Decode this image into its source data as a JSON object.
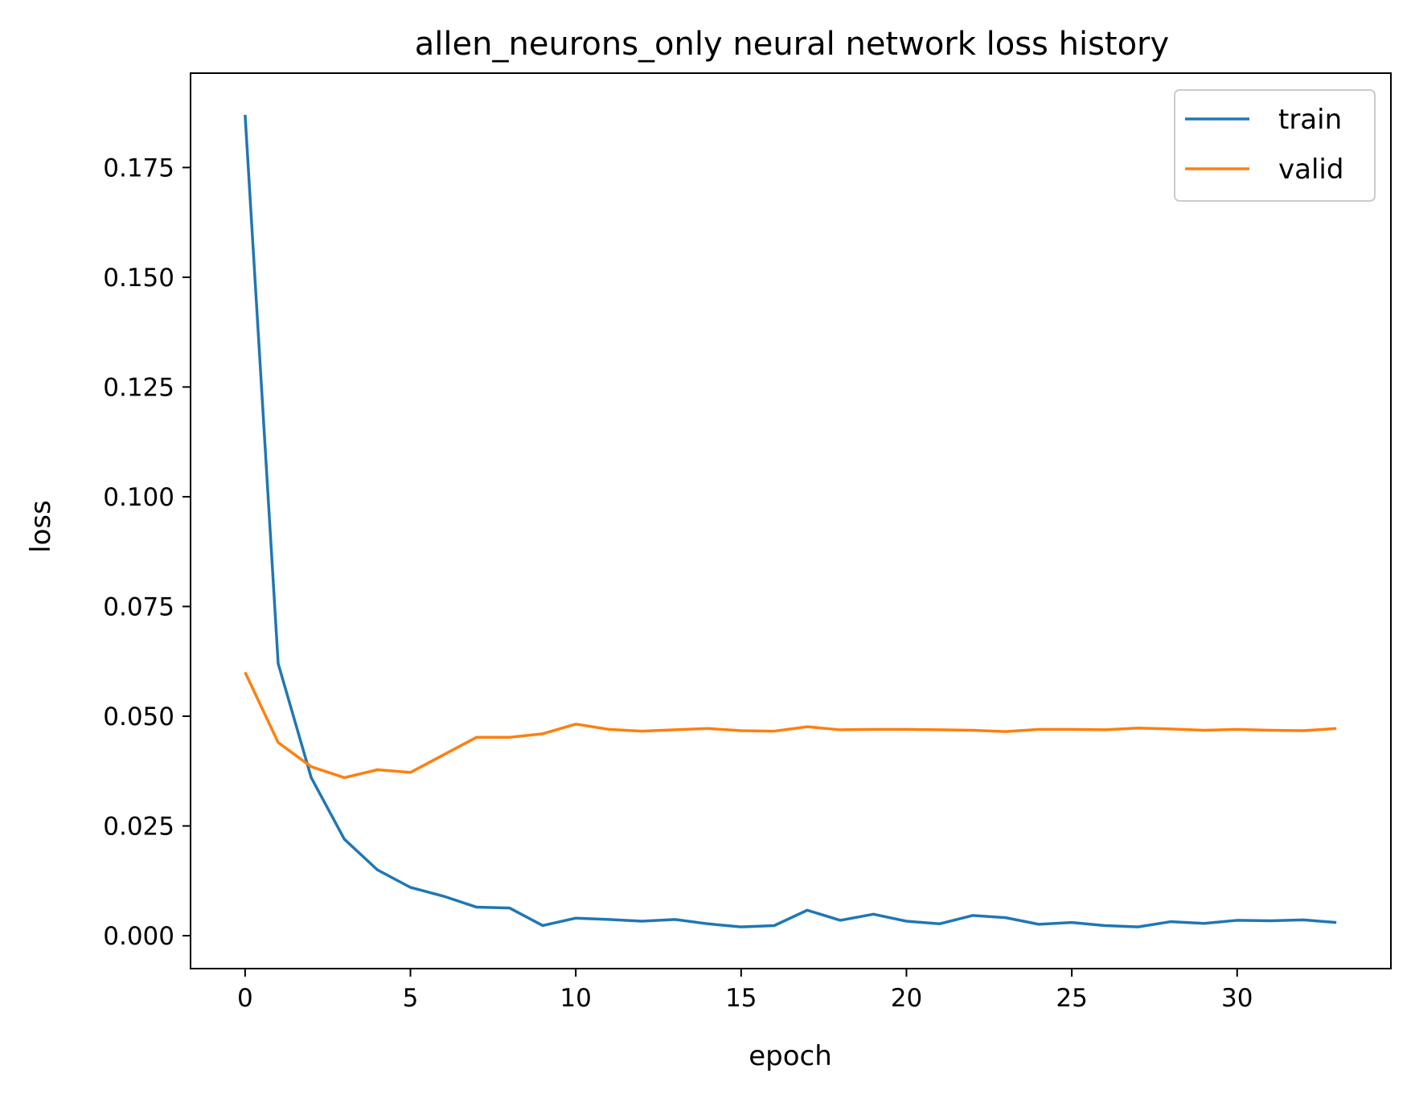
{
  "chart_data": {
    "type": "line",
    "title": "allen_neurons_only neural network loss history",
    "xlabel": "epoch",
    "ylabel": "loss",
    "xlim": [
      -1.65,
      34.65
    ],
    "ylim": [
      -0.0075,
      0.1965
    ],
    "xticks": [
      0,
      5,
      10,
      15,
      20,
      25,
      30
    ],
    "xtick_labels": [
      "0",
      "5",
      "10",
      "15",
      "20",
      "25",
      "30"
    ],
    "yticks": [
      0.0,
      0.025,
      0.05,
      0.075,
      0.1,
      0.125,
      0.15,
      0.175
    ],
    "ytick_labels": [
      "0.000",
      "0.025",
      "0.050",
      "0.075",
      "0.100",
      "0.125",
      "0.150",
      "0.175"
    ],
    "grid": false,
    "legend_position": "top-right",
    "x": [
      0,
      1,
      2,
      3,
      4,
      5,
      6,
      7,
      8,
      9,
      10,
      11,
      12,
      13,
      14,
      15,
      16,
      17,
      18,
      19,
      20,
      21,
      22,
      23,
      24,
      25,
      26,
      27,
      28,
      29,
      30,
      31,
      32,
      33
    ],
    "series": [
      {
        "name": "train",
        "color": "#1f77b4",
        "values": [
          0.187,
          0.062,
          0.036,
          0.022,
          0.015,
          0.011,
          0.009,
          0.0065,
          0.0063,
          0.0023,
          0.004,
          0.0037,
          0.0033,
          0.0037,
          0.0027,
          0.002,
          0.0023,
          0.0058,
          0.0035,
          0.0049,
          0.0033,
          0.0027,
          0.0046,
          0.0041,
          0.0026,
          0.003,
          0.0023,
          0.002,
          0.0032,
          0.0028,
          0.0035,
          0.0034,
          0.0036,
          0.003
        ]
      },
      {
        "name": "valid",
        "color": "#ff7f0e",
        "values": [
          0.06,
          0.044,
          0.0385,
          0.036,
          0.0378,
          0.0372,
          0.0412,
          0.0452,
          0.0452,
          0.046,
          0.0482,
          0.047,
          0.0466,
          0.0469,
          0.0472,
          0.0467,
          0.0466,
          0.0476,
          0.0469,
          0.047,
          0.047,
          0.0469,
          0.0468,
          0.0465,
          0.047,
          0.047,
          0.0469,
          0.0473,
          0.0471,
          0.0468,
          0.047,
          0.0468,
          0.0467,
          0.0472
        ]
      }
    ]
  }
}
